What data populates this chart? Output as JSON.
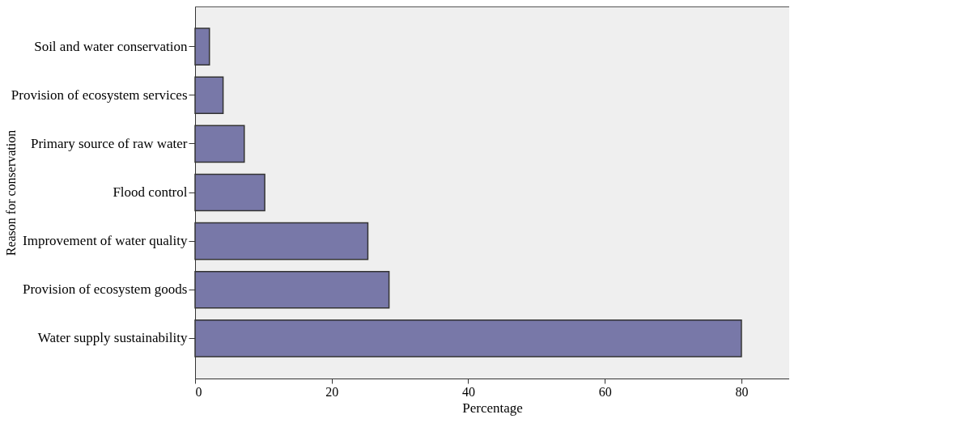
{
  "chart_data": {
    "type": "bar",
    "orientation": "horizontal",
    "xlabel": "Percentage",
    "ylabel": "Reason for conservation",
    "categories": [
      "Soil and water conservation",
      "Provision of ecosystem services",
      "Primary source of raw water",
      "Flood control",
      "Improvement of water quality",
      "Provision of ecosystem goods",
      "Water supply sustainability"
    ],
    "values": [
      2.1,
      4.1,
      7.2,
      10.2,
      25.3,
      28.4,
      80
    ],
    "color": "#7878a8",
    "xlim": [
      0,
      87
    ],
    "xticks": [
      0,
      20,
      40,
      60,
      80
    ],
    "grid": false
  }
}
